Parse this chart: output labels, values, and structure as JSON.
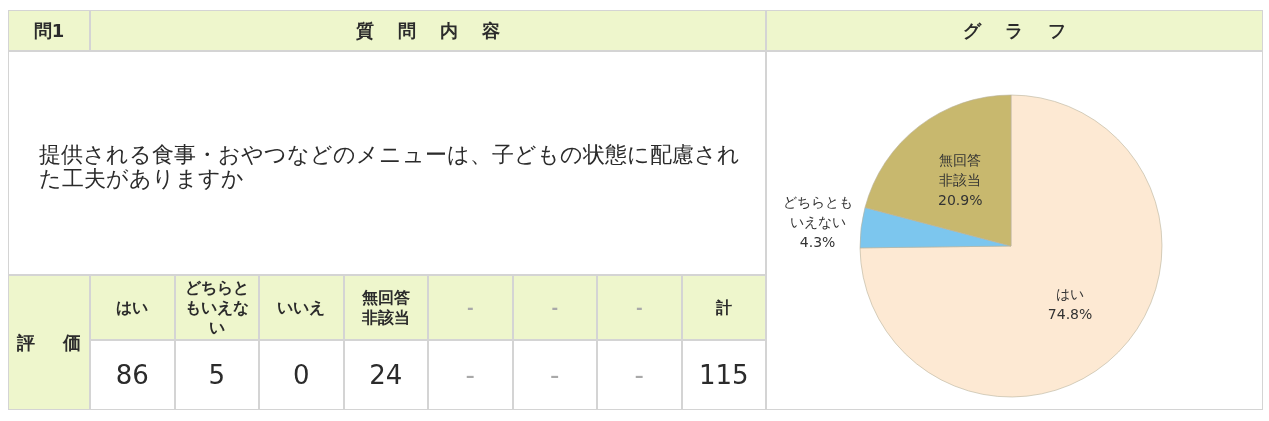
{
  "chart_data": [
    {
      "type": "other",
      "title": "提供される食事・おやつなどのメニューは、子どもの状態に配慮された工夫がありますか",
      "annotations": [
        "問1",
        "質 問 内 容",
        "評 価"
      ],
      "categories": [
        "はい",
        "どちらともいえない",
        "いいえ",
        "無回答非該当",
        "-",
        "-",
        "-",
        "計"
      ],
      "values": [
        86,
        5,
        0,
        24,
        null,
        null,
        null,
        115
      ],
      "value_labels": [
        "86",
        "5",
        "0",
        "24",
        "-",
        "-",
        "-",
        "115"
      ]
    },
    {
      "type": "pie",
      "title": "グ ラ フ",
      "categories": [
        "はい",
        "どちらともいえない",
        "無回答非該当"
      ],
      "values": [
        74.8,
        4.3,
        20.9
      ],
      "colors": [
        "#fde9d3",
        "#7cc6ee",
        "#c8b86e"
      ],
      "value_labels": [
        "74.8%",
        "4.3%",
        "20.9%"
      ]
    }
  ]
}
